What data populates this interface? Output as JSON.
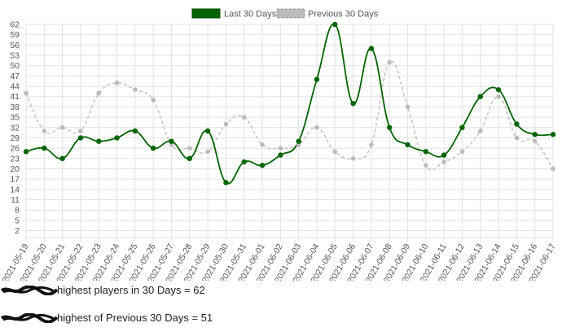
{
  "chart_data": {
    "type": "line",
    "title": "",
    "xlabel": "",
    "ylabel": "",
    "ylim": [
      0,
      62
    ],
    "yticks": [
      2,
      5,
      8,
      11,
      14,
      17,
      20,
      23,
      26,
      29,
      32,
      35,
      38,
      41,
      44,
      47,
      50,
      53,
      56,
      59,
      62
    ],
    "grid": true,
    "legend_position": "top-center",
    "categories": [
      "2021-05-19",
      "2021-05-20",
      "2021-05-21",
      "2021-05-22",
      "2021-05-23",
      "2021-05-24",
      "2021-05-25",
      "2021-05-26",
      "2021-05-27",
      "2021-05-28",
      "2021-05-29",
      "2021-05-30",
      "2021-05-31",
      "2021-06-01",
      "2021-06-02",
      "2021-06-03",
      "2021-06-04",
      "2021-06-05",
      "2021-06-06",
      "2021-06-07",
      "2021-06-08",
      "2021-06-09",
      "2021-06-10",
      "2021-06-11",
      "2021-06-12",
      "2021-06-13",
      "2021-06-14",
      "2021-06-15",
      "2021-06-16",
      "2021-06-17"
    ],
    "series": [
      {
        "name": "Last 30 Days",
        "color": "#006400",
        "dashed": false,
        "values": [
          25,
          26,
          23,
          29,
          28,
          29,
          31,
          26,
          28,
          23,
          31,
          16,
          22,
          21,
          24,
          28,
          46,
          62,
          39,
          55,
          32,
          27,
          25,
          24,
          32,
          41,
          43,
          33,
          30,
          30
        ]
      },
      {
        "name": "Previous 30 Days",
        "color": "#bbbbbb",
        "dashed": true,
        "values": [
          42,
          31,
          32,
          31,
          42,
          45,
          43,
          40,
          27,
          26,
          25,
          33,
          35,
          27,
          26,
          27,
          32,
          25,
          23,
          27,
          51,
          38,
          21,
          22,
          25,
          31,
          41,
          29,
          28,
          20
        ]
      }
    ]
  },
  "captions": [
    "highest players in 30 Days = 62",
    "highest of Previous 30 Days = 51"
  ]
}
